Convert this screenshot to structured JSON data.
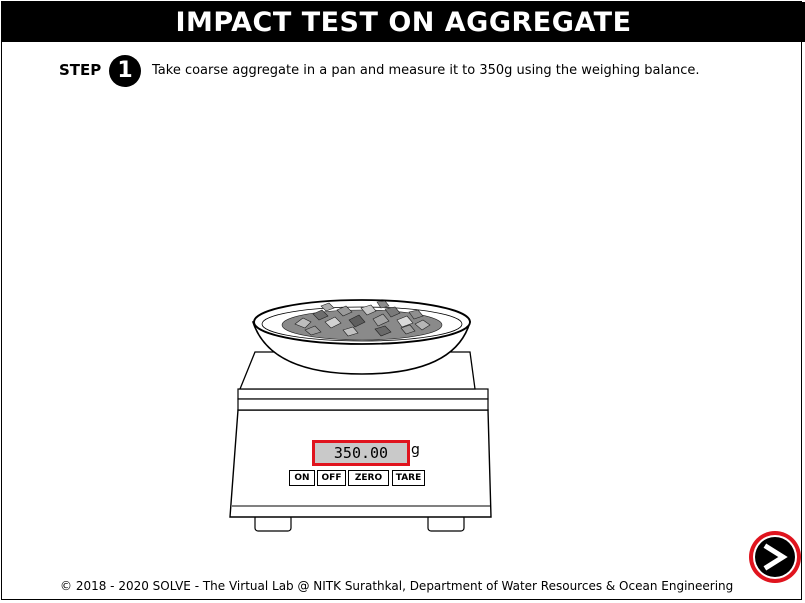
{
  "header": {
    "title": "IMPACT TEST ON AGGREGATE"
  },
  "step": {
    "label": "STEP",
    "number": "1",
    "instruction": "Take coarse aggregate in a pan and measure it to 350g using the weighing balance."
  },
  "balance": {
    "reading": "350.00",
    "unit": "g",
    "buttons": {
      "on": "ON",
      "off": "OFF",
      "zero": "ZERO",
      "tare": "TARE"
    },
    "display_border_color": "#e0141e"
  },
  "next_button": {
    "icon": "next-arrow-icon",
    "ring_color": "#e0141e"
  },
  "footer": {
    "text": "© 2018 - 2020 SOLVE - The Virtual Lab @ NITK Surathkal, Department of Water Resources & Ocean Engineering"
  }
}
